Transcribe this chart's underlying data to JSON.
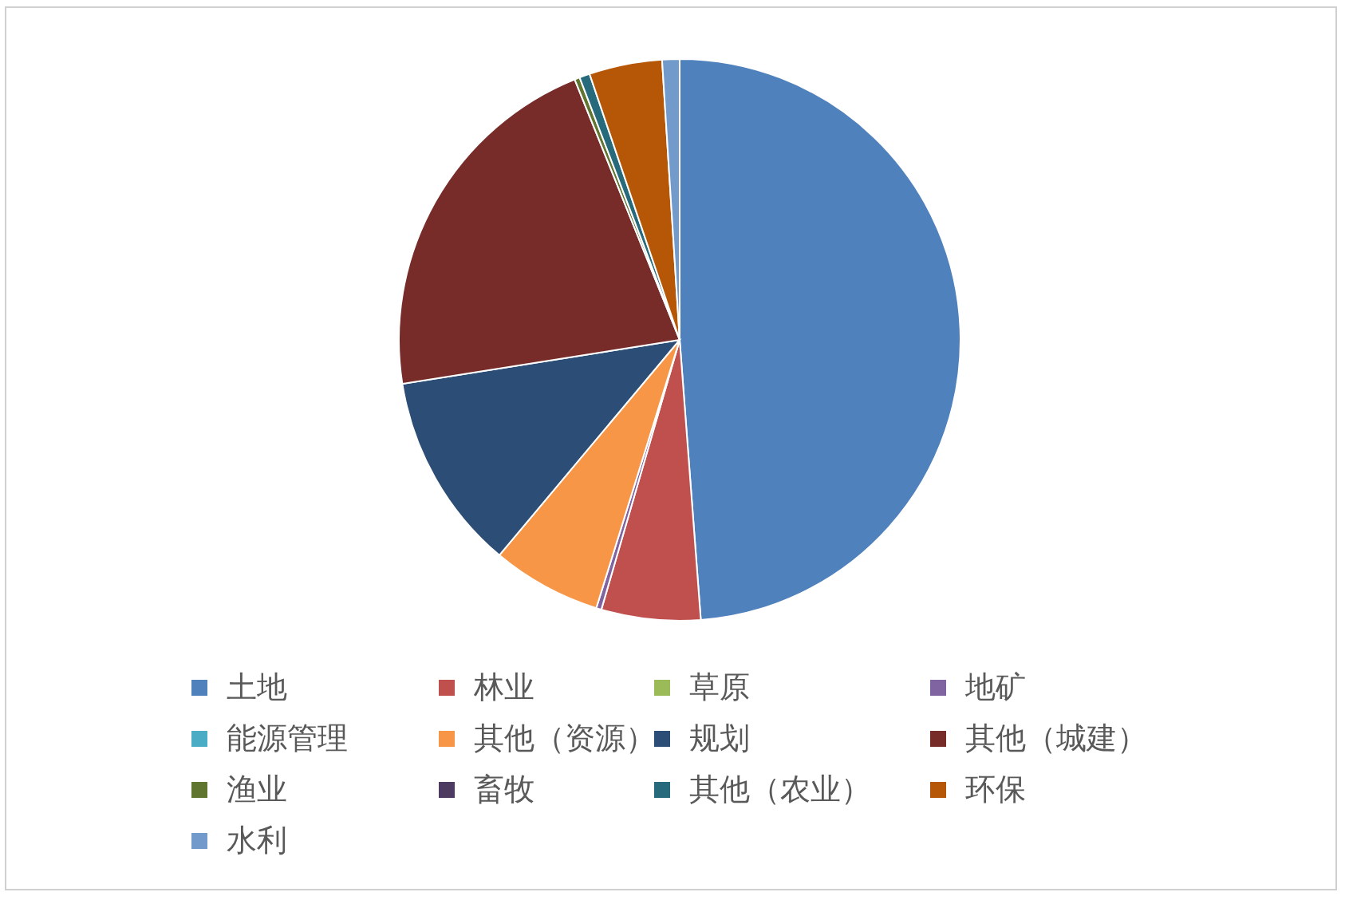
{
  "chart_data": {
    "type": "pie",
    "categories": [
      "土地",
      "林业",
      "草原",
      "地矿",
      "能源管理",
      "其他（资源）",
      "规划",
      "其他（城建）",
      "渔业",
      "畜牧",
      "其他（农业）",
      "环保",
      "水利"
    ],
    "values": [
      48.8,
      5.7,
      null,
      0.3,
      null,
      6.3,
      11.4,
      21.4,
      0.3,
      null,
      0.6,
      4.2,
      1.0
    ],
    "colors": [
      "#4f81bd",
      "#c0504d",
      "#9bbb59",
      "#8064a2",
      "#4bacc6",
      "#f79646",
      "#2c4d75",
      "#772c2a",
      "#5f7530",
      "#4d3b62",
      "#276a7c",
      "#b65708",
      "#729aca"
    ],
    "legend": "bottom"
  }
}
